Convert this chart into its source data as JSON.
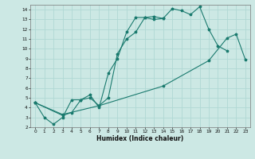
{
  "xlabel": "Humidex (Indice chaleur)",
  "xlim": [
    -0.5,
    23.5
  ],
  "ylim": [
    2,
    14.5
  ],
  "xticks": [
    0,
    1,
    2,
    3,
    4,
    5,
    6,
    7,
    8,
    9,
    10,
    11,
    12,
    13,
    14,
    15,
    16,
    17,
    18,
    19,
    20,
    21,
    22,
    23
  ],
  "yticks": [
    2,
    3,
    4,
    5,
    6,
    7,
    8,
    9,
    10,
    11,
    12,
    13,
    14
  ],
  "bg_color": "#cce8e4",
  "line_color": "#1a7a6e",
  "grid_color": "#b0d8d4",
  "series": [
    {
      "x": [
        0,
        1,
        2,
        3,
        4,
        5,
        6,
        7,
        8,
        9,
        10,
        11,
        12,
        13,
        14,
        15,
        16,
        17,
        18,
        19,
        20,
        21
      ],
      "y": [
        4.5,
        3.0,
        2.3,
        3.0,
        4.8,
        4.8,
        5.0,
        4.2,
        5.0,
        9.5,
        11.0,
        11.7,
        13.2,
        13.3,
        13.1,
        14.1,
        13.9,
        13.5,
        14.3,
        12.0,
        10.3,
        9.8
      ]
    },
    {
      "x": [
        0,
        3,
        4,
        5,
        6,
        7,
        8,
        9,
        10,
        11,
        12,
        13,
        14
      ],
      "y": [
        4.5,
        3.2,
        3.5,
        4.8,
        5.3,
        4.0,
        7.5,
        9.0,
        11.7,
        13.2,
        13.2,
        13.0,
        13.1
      ]
    },
    {
      "x": [
        0,
        3,
        7,
        14,
        19,
        21,
        22,
        23
      ],
      "y": [
        4.5,
        3.3,
        4.2,
        6.2,
        8.8,
        11.1,
        11.5,
        8.9
      ]
    }
  ]
}
